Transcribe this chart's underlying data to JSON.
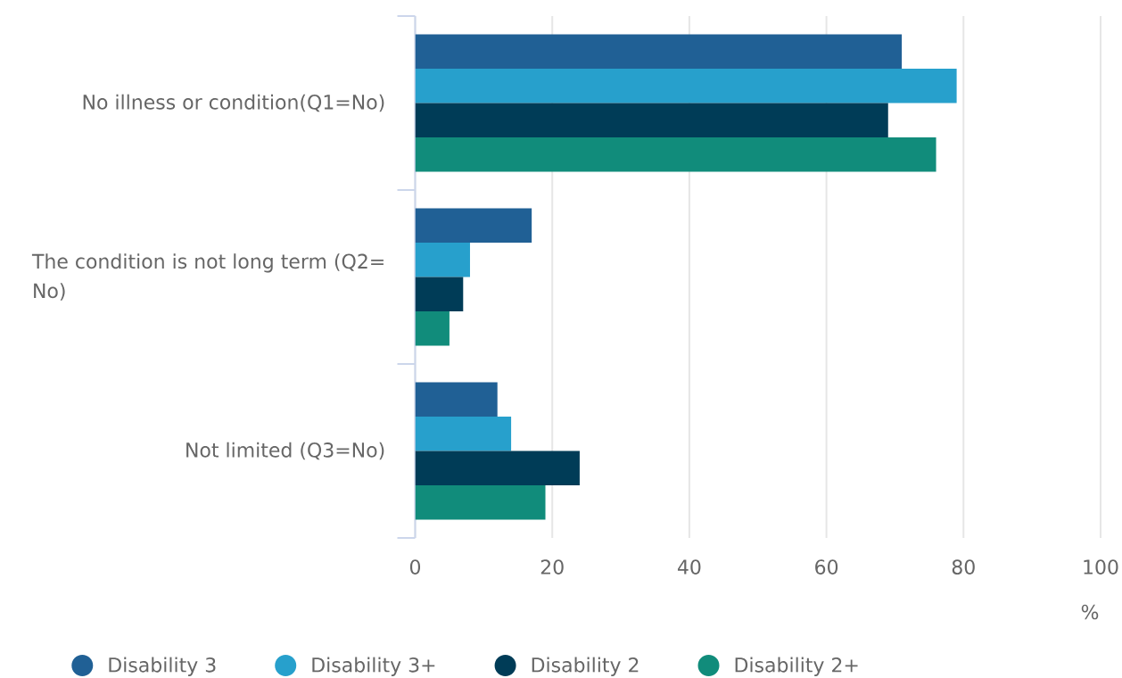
{
  "chart_data": {
    "type": "bar",
    "orientation": "horizontal",
    "categories": [
      "No illness or condition(Q1=No)",
      "The condition is not long term (Q2= No)",
      "Not limited (Q3=No)"
    ],
    "series": [
      {
        "name": "Disability 3",
        "color": "#206095",
        "values": [
          71,
          17,
          12
        ]
      },
      {
        "name": "Disability 3+",
        "color": "#27a0cc",
        "values": [
          79,
          8,
          14
        ]
      },
      {
        "name": "Disability 2",
        "color": "#003c57",
        "values": [
          69,
          7,
          24
        ]
      },
      {
        "name": "Disability 2+",
        "color": "#118c7b",
        "values": [
          76,
          5,
          19
        ]
      }
    ],
    "xlabel": "%",
    "xlim": [
      0,
      100
    ],
    "xticks": [
      0,
      20,
      40,
      60,
      80,
      100
    ],
    "grid": "x",
    "legend": "bottom"
  }
}
